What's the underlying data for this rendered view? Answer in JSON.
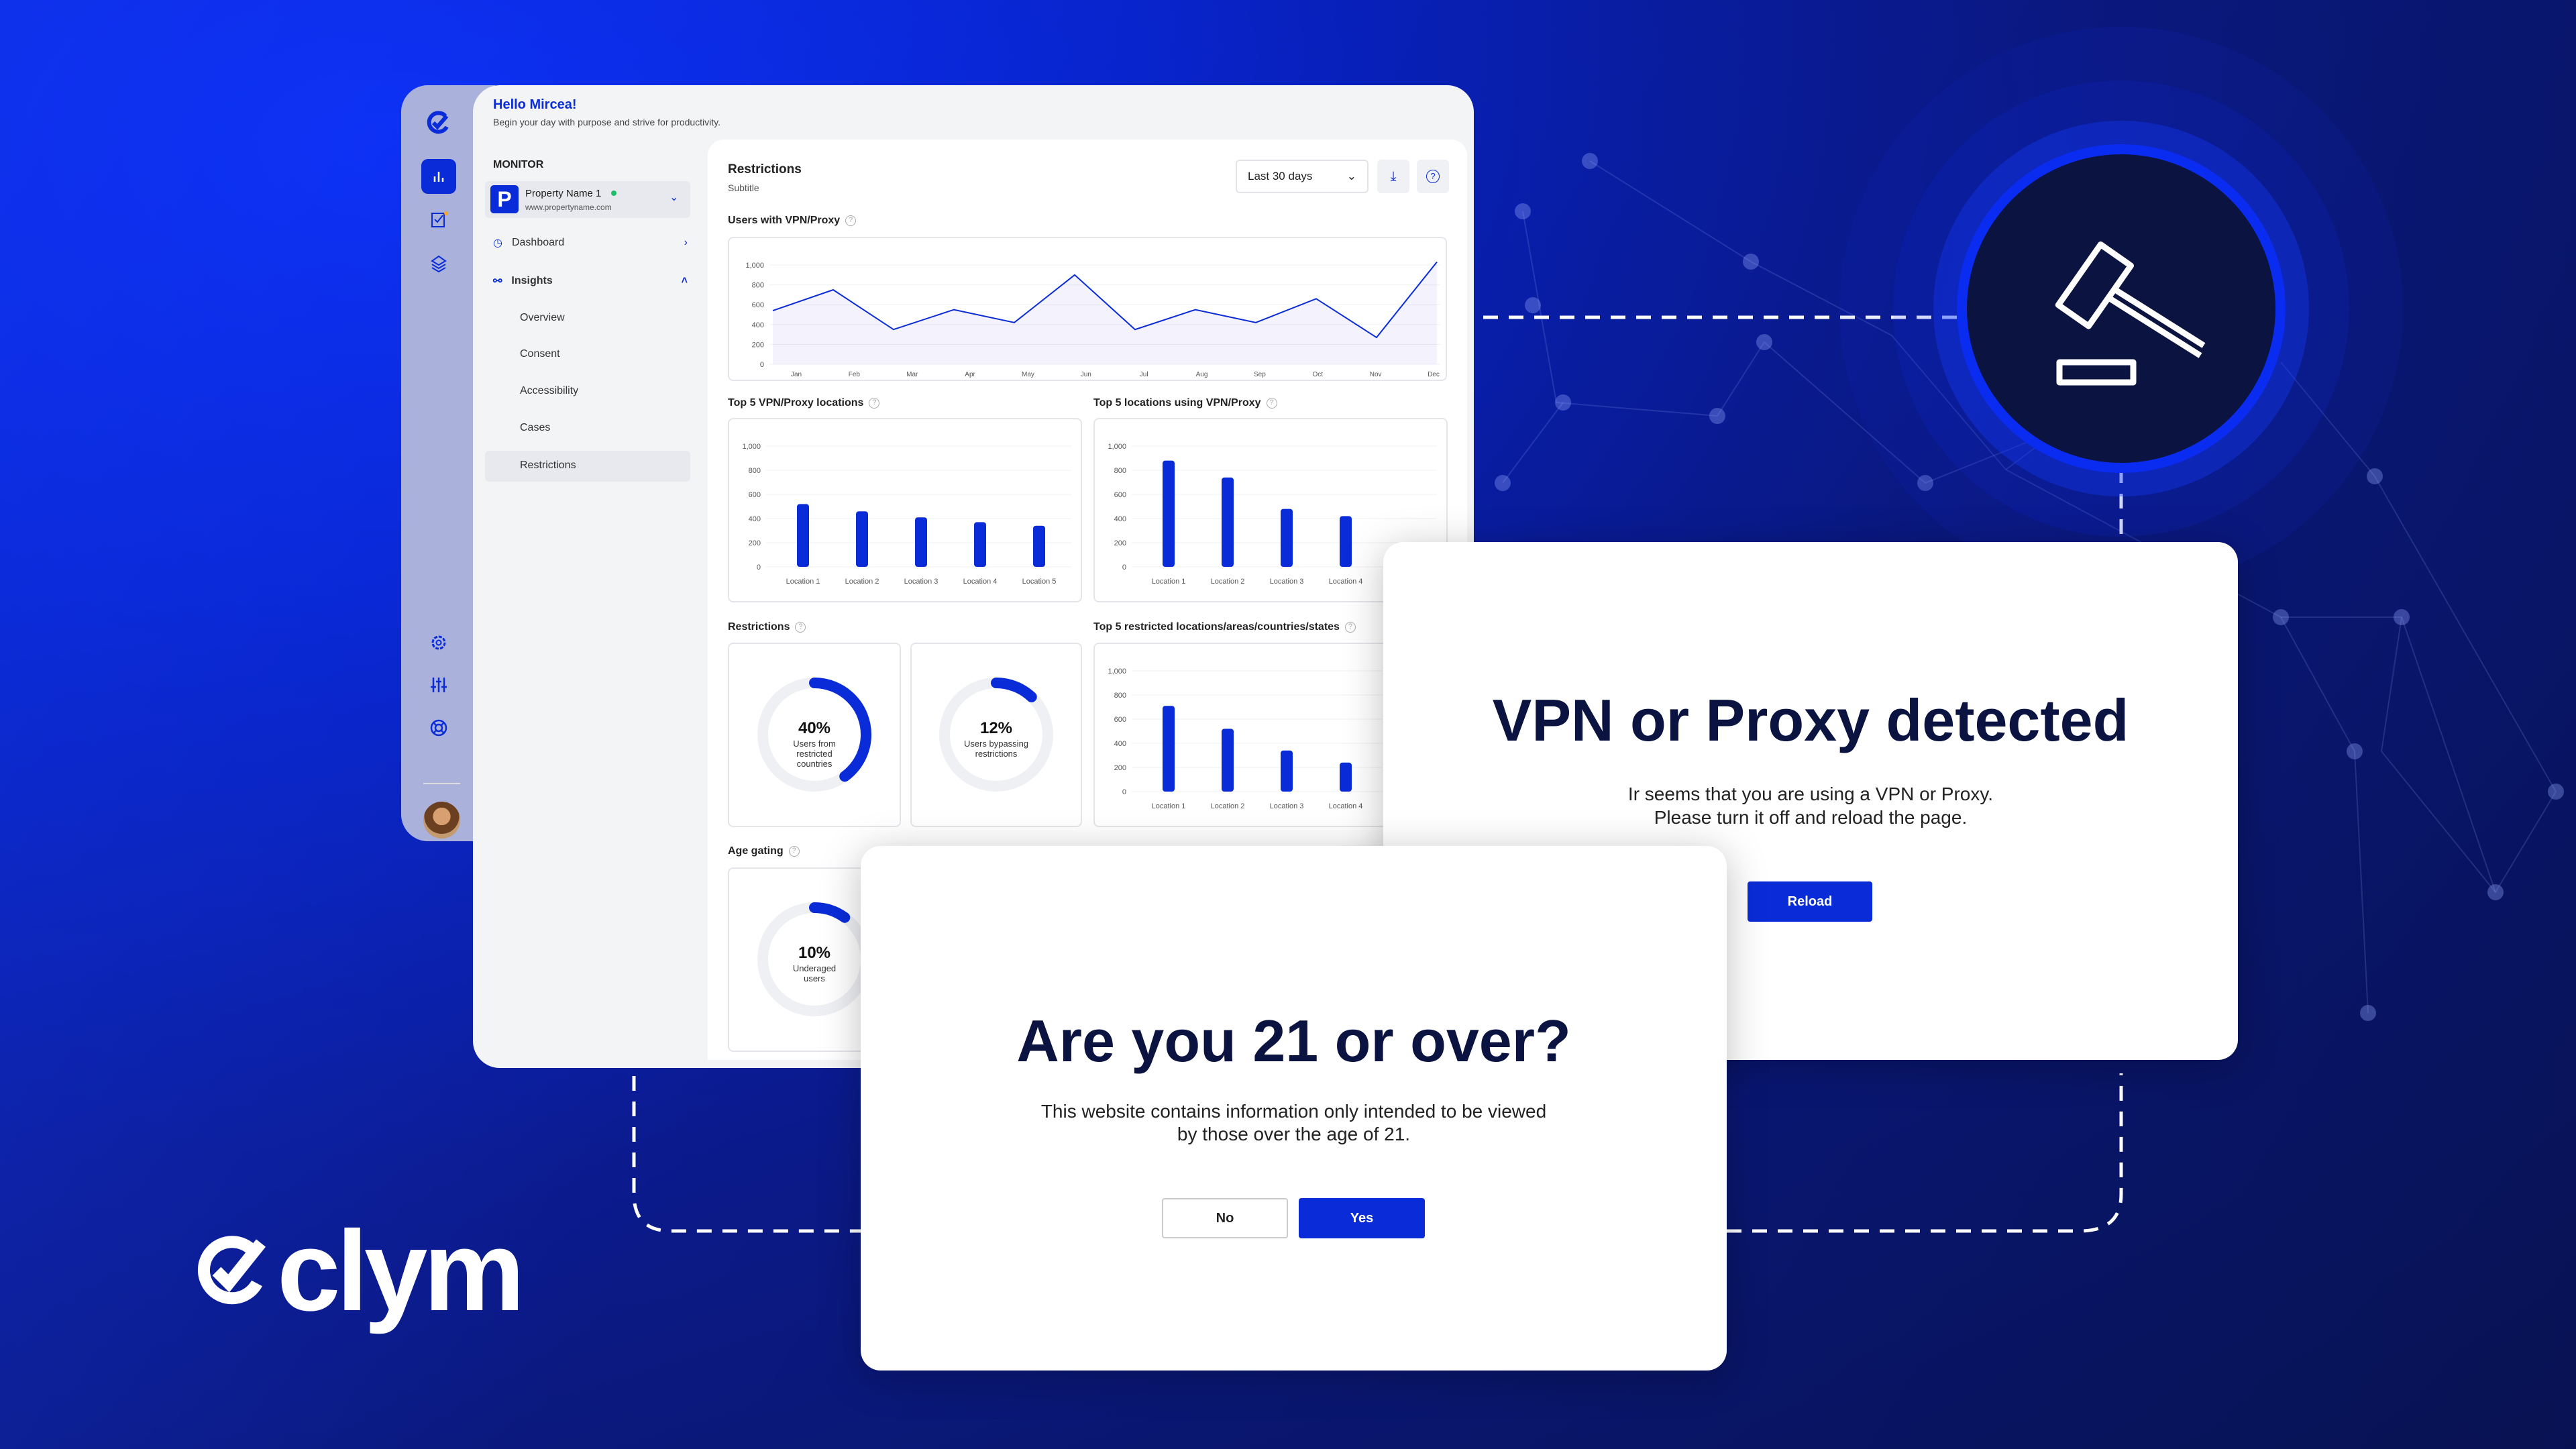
{
  "header": {
    "greeting": "Hello Mircea!",
    "tagline": "Begin your day with purpose and strive for productivity."
  },
  "sidebar": {
    "section": "MONITOR",
    "property": {
      "initial": "P",
      "name": "Property Name 1",
      "url": "www.propertyname.com",
      "status_color": "#1fbf6a"
    },
    "items": [
      {
        "label": "Dashboard"
      },
      {
        "label": "Insights"
      }
    ],
    "subitems": [
      "Overview",
      "Consent",
      "Accessibility",
      "Cases",
      "Restrictions"
    ],
    "active_subitem": "Restrictions"
  },
  "content": {
    "title": "Restrictions",
    "subtitle": "Subtitle",
    "range": "Last 30 days",
    "sections": {
      "users_vpn": "Users with VPN/Proxy",
      "top5_vpn": "Top 5 VPN/Proxy locations",
      "top5_using": "Top 5 locations using VPN/Proxy",
      "restrictions": "Restrictions",
      "top5_restricted": "Top 5 restricted locations/areas/countries/states",
      "age": "Age gating"
    }
  },
  "chart_data": [
    {
      "type": "line",
      "categories": [
        "Jan",
        "Feb",
        "Mar",
        "Apr",
        "May",
        "Jun",
        "Jul",
        "Aug",
        "Sep",
        "Oct",
        "Nov",
        "Dec"
      ],
      "values": [
        540,
        750,
        350,
        550,
        420,
        900,
        350,
        550,
        420,
        660,
        270,
        1030
      ],
      "yticks": [
        "1,000",
        "800",
        "600",
        "400",
        "200",
        "0"
      ],
      "ylim": [
        0,
        1000
      ]
    },
    {
      "type": "bar",
      "categories": [
        "Location 1",
        "Location 2",
        "Location 3",
        "Location 4",
        "Location 5"
      ],
      "values": [
        520,
        460,
        410,
        370,
        340
      ],
      "yticks": [
        "1,000",
        "800",
        "600",
        "400",
        "200",
        "0"
      ],
      "ylim": [
        0,
        1000
      ]
    },
    {
      "type": "bar",
      "categories": [
        "Location 1",
        "Location 2",
        "Location 3",
        "Location 4"
      ],
      "values": [
        880,
        740,
        480,
        420
      ],
      "yticks": [
        "1,000",
        "800",
        "600",
        "400",
        "200",
        "0"
      ],
      "ylim": [
        0,
        1000
      ]
    },
    {
      "type": "bar",
      "categories": [
        "Location 1",
        "Location 2",
        "Location 3",
        "Location 4"
      ],
      "values": [
        710,
        520,
        340,
        240
      ],
      "yticks": [
        "1,000",
        "800",
        "600",
        "400",
        "200",
        "0"
      ],
      "ylim": [
        0,
        1000
      ]
    }
  ],
  "donuts": [
    {
      "value": 40,
      "label": "40%",
      "text": "Users from restricted countries"
    },
    {
      "value": 12,
      "label": "12%",
      "text": "Users bypassing restrictions"
    },
    {
      "value": 10,
      "label": "10%",
      "text": "Underaged users"
    }
  ],
  "vpn_modal": {
    "title": "VPN or Proxy detected",
    "line1": "Ir seems that you are using a VPN or Proxy.",
    "line2": "Please turn it off and reload the page.",
    "button": "Reload"
  },
  "age_modal": {
    "title": "Are you 21 or over?",
    "line1": "This website contains information only intended to be viewed",
    "line2": "by those over the age of 21.",
    "no": "No",
    "yes": "Yes"
  },
  "brand": {
    "logo": "clym",
    "accent": "#0a2cd8"
  }
}
